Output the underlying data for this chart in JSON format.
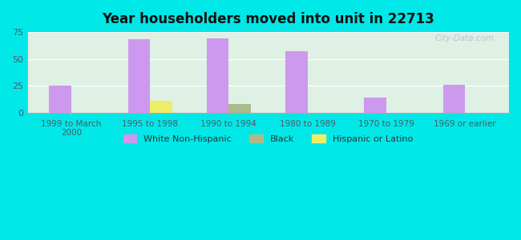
{
  "title": "Year householders moved into unit in 22713",
  "categories": [
    "1999 to March\n2000",
    "1995 to 1998",
    "1990 to 1994",
    "1980 to 1989",
    "1970 to 1979",
    "1969 or earlier"
  ],
  "white_non_hispanic": [
    25,
    68,
    69,
    57,
    14,
    26
  ],
  "black_vals": [
    0,
    0,
    8,
    0,
    0,
    0
  ],
  "hispanic_vals": [
    0,
    11,
    0,
    0,
    0,
    0
  ],
  "white_color": "#cc99ee",
  "black_color": "#aabb88",
  "hispanic_color": "#eeee66",
  "background_outer": "#00e8e8",
  "background_inner": "#dff0e4",
  "ylim": [
    0,
    75
  ],
  "yticks": [
    0,
    25,
    50,
    75
  ],
  "bar_width": 0.28,
  "watermark": "City-Data.com",
  "legend_labels": [
    "White Non-Hispanic",
    "Black",
    "Hispanic or Latino"
  ]
}
